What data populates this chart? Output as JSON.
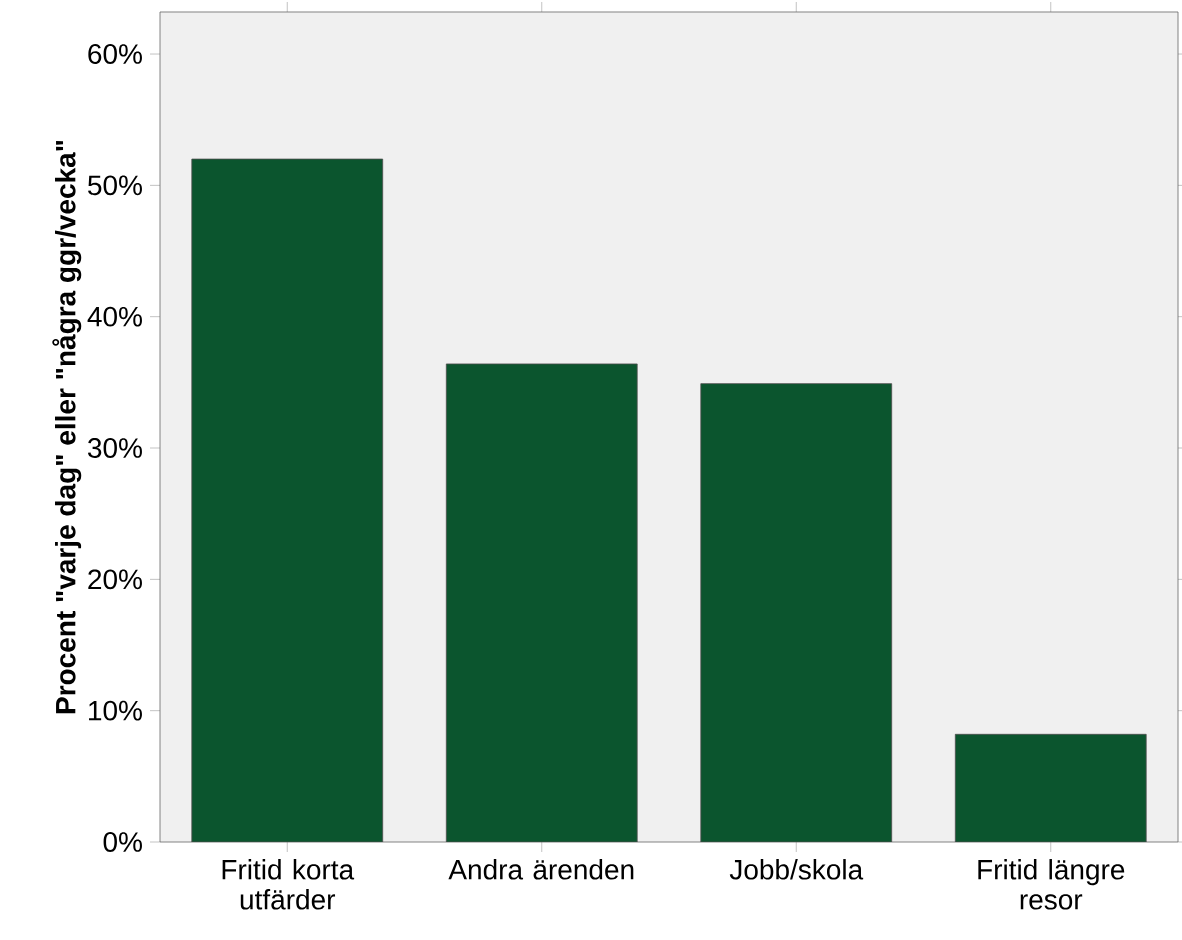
{
  "chart_data": {
    "type": "bar",
    "ylabel": "Procent \"varje dag\" eller \"några ggr/vecka\"",
    "categories": [
      "Fritid korta utfärder",
      "Andra ärenden",
      "Jobb/skola",
      "Fritid längre resor"
    ],
    "values": [
      52,
      36.4,
      34.9,
      8.2
    ],
    "color": "#0b552e",
    "ylim": [
      0,
      63.2
    ],
    "yticks": [
      {
        "value": 0,
        "label": "0%"
      },
      {
        "value": 10,
        "label": "10%"
      },
      {
        "value": 20,
        "label": "20%"
      },
      {
        "value": 30,
        "label": "30%"
      },
      {
        "value": 40,
        "label": "40%"
      },
      {
        "value": 50,
        "label": "50%"
      },
      {
        "value": 60,
        "label": "60%"
      }
    ],
    "grid": false
  }
}
